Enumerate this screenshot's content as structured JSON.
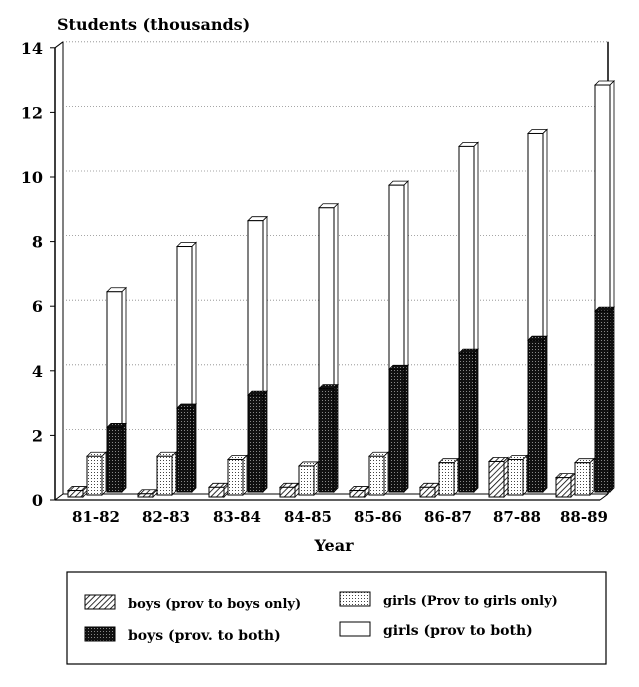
{
  "chart_data": {
    "type": "bar",
    "title": "",
    "ylabel": "Students (thousands)",
    "xlabel": "Year",
    "ylim": [
      0,
      14
    ],
    "yticks": [
      0,
      2,
      4,
      6,
      8,
      10,
      12,
      14
    ],
    "grid": true,
    "categories": [
      "81-82",
      "82-83",
      "83-84",
      "84-85",
      "85-86",
      "86-87",
      "87-88",
      "88-89"
    ],
    "series": [
      {
        "name": "boys (prov to boys only)",
        "pattern": "hatch",
        "values": [
          0.2,
          0.1,
          0.3,
          0.3,
          0.2,
          0.3,
          1.1,
          0.6
        ]
      },
      {
        "name": "girls (Prov to girls only)",
        "pattern": "dots",
        "values": [
          1.2,
          1.2,
          1.1,
          0.9,
          1.2,
          1.0,
          1.1,
          1.0
        ]
      },
      {
        "name": "boys (prov. to both)",
        "pattern": "dark",
        "stack": "both",
        "values": [
          2.0,
          2.6,
          3.0,
          3.2,
          3.8,
          4.3,
          4.7,
          5.6
        ]
      },
      {
        "name": "girls (prov to both)",
        "pattern": "white",
        "stack": "both",
        "values": [
          4.2,
          5.0,
          5.4,
          5.6,
          5.7,
          6.4,
          6.4,
          7.0
        ]
      }
    ],
    "legend": {
      "placement": "bottom"
    }
  }
}
